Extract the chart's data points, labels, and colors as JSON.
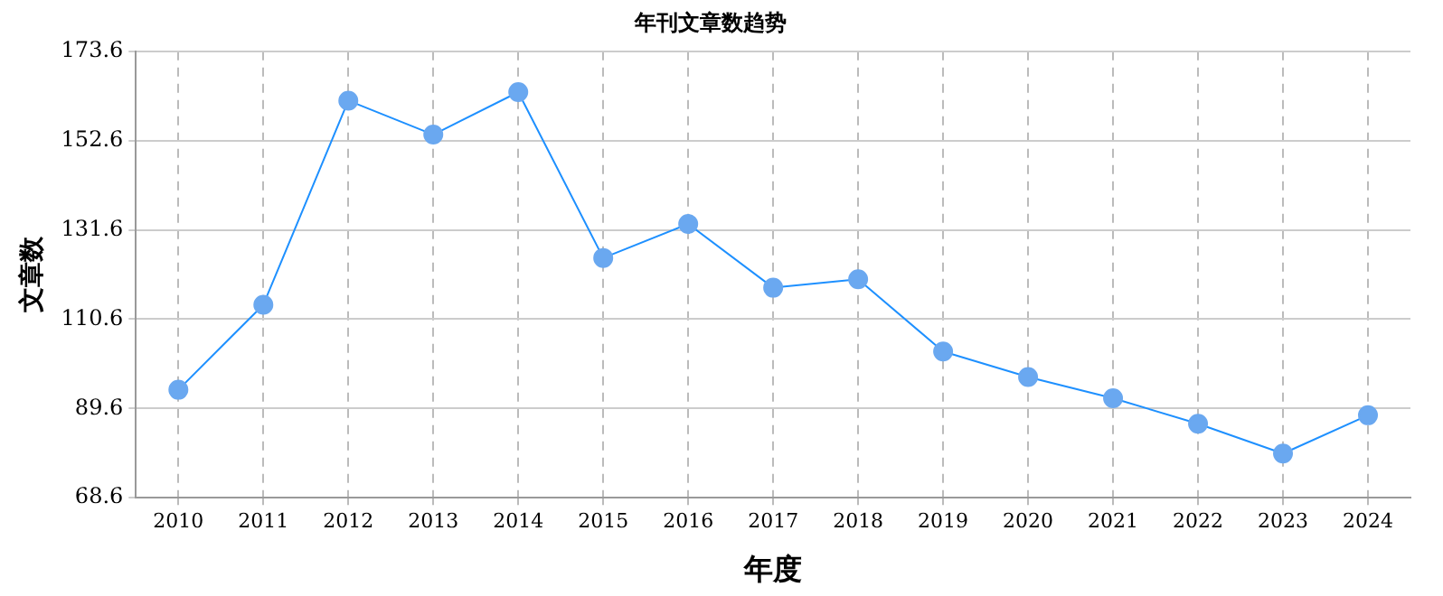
{
  "chart_data": {
    "type": "line",
    "title": "年刊文章数趋势",
    "xlabel": "年度",
    "ylabel": "文章数",
    "categories": [
      "2010",
      "2011",
      "2012",
      "2013",
      "2014",
      "2015",
      "2016",
      "2017",
      "2018",
      "2019",
      "2020",
      "2021",
      "2022",
      "2023",
      "2024"
    ],
    "series": [
      {
        "color": "#1e90ff",
        "values": [
          94,
          114,
          162,
          154,
          164,
          125,
          133,
          118,
          120,
          103,
          97,
          92,
          86,
          79,
          88
        ]
      }
    ],
    "ylim": [
      68.6,
      173.6
    ],
    "yticks": [
      68.6,
      89.6,
      110.6,
      131.6,
      152.6,
      173.6
    ],
    "grid": true,
    "legend": false,
    "marker": "circle",
    "line_style": "solid"
  }
}
